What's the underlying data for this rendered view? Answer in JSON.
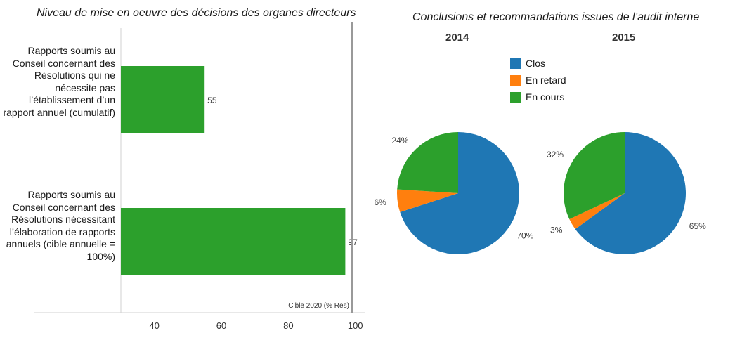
{
  "chart_data": [
    {
      "type": "bar",
      "orientation": "horizontal",
      "title": "Niveau de mise en oeuvre des décisions des organes directeurs",
      "categories": [
        "Rapports soumis au Conseil concernant des Résolutions qui ne nécessite pas l’établissement d’un rapport annuel (cumulatif)",
        "Rapports soumis au Conseil concernant des Résolutions nécessitant l’élaboration de rapports annuels (cible annuelle = 100%)"
      ],
      "values": [
        55,
        97
      ],
      "value_labels": [
        "55",
        "97"
      ],
      "xlim": [
        30,
        103
      ],
      "xticks": [
        40,
        60,
        80,
        100
      ],
      "target_line": {
        "value": 99,
        "label": "Cible 2020 (% Res)"
      },
      "bar_color": "#2ca02c",
      "grid": false
    },
    {
      "type": "pie",
      "title": "Conclusions et recommandations issues de l’audit interne",
      "legend": {
        "placement": "top-center",
        "entries": [
          {
            "label": "Clos",
            "color": "#1f77b4"
          },
          {
            "label": "En retard",
            "color": "#ff7f0e"
          },
          {
            "label": "En cours",
            "color": "#2ca02c"
          }
        ]
      },
      "pies": [
        {
          "name": "2014",
          "slices": [
            {
              "label": "Clos",
              "value": 70,
              "display": "70%",
              "color": "#1f77b4"
            },
            {
              "label": "En retard",
              "value": 6,
              "display": "6%",
              "color": "#ff7f0e"
            },
            {
              "label": "En cours",
              "value": 24,
              "display": "24%",
              "color": "#2ca02c"
            }
          ]
        },
        {
          "name": "2015",
          "slices": [
            {
              "label": "Clos",
              "value": 65,
              "display": "65%",
              "color": "#1f77b4"
            },
            {
              "label": "En retard",
              "value": 3,
              "display": "3%",
              "color": "#ff7f0e"
            },
            {
              "label": "En cours",
              "value": 32,
              "display": "32%",
              "color": "#2ca02c"
            }
          ]
        }
      ]
    }
  ]
}
